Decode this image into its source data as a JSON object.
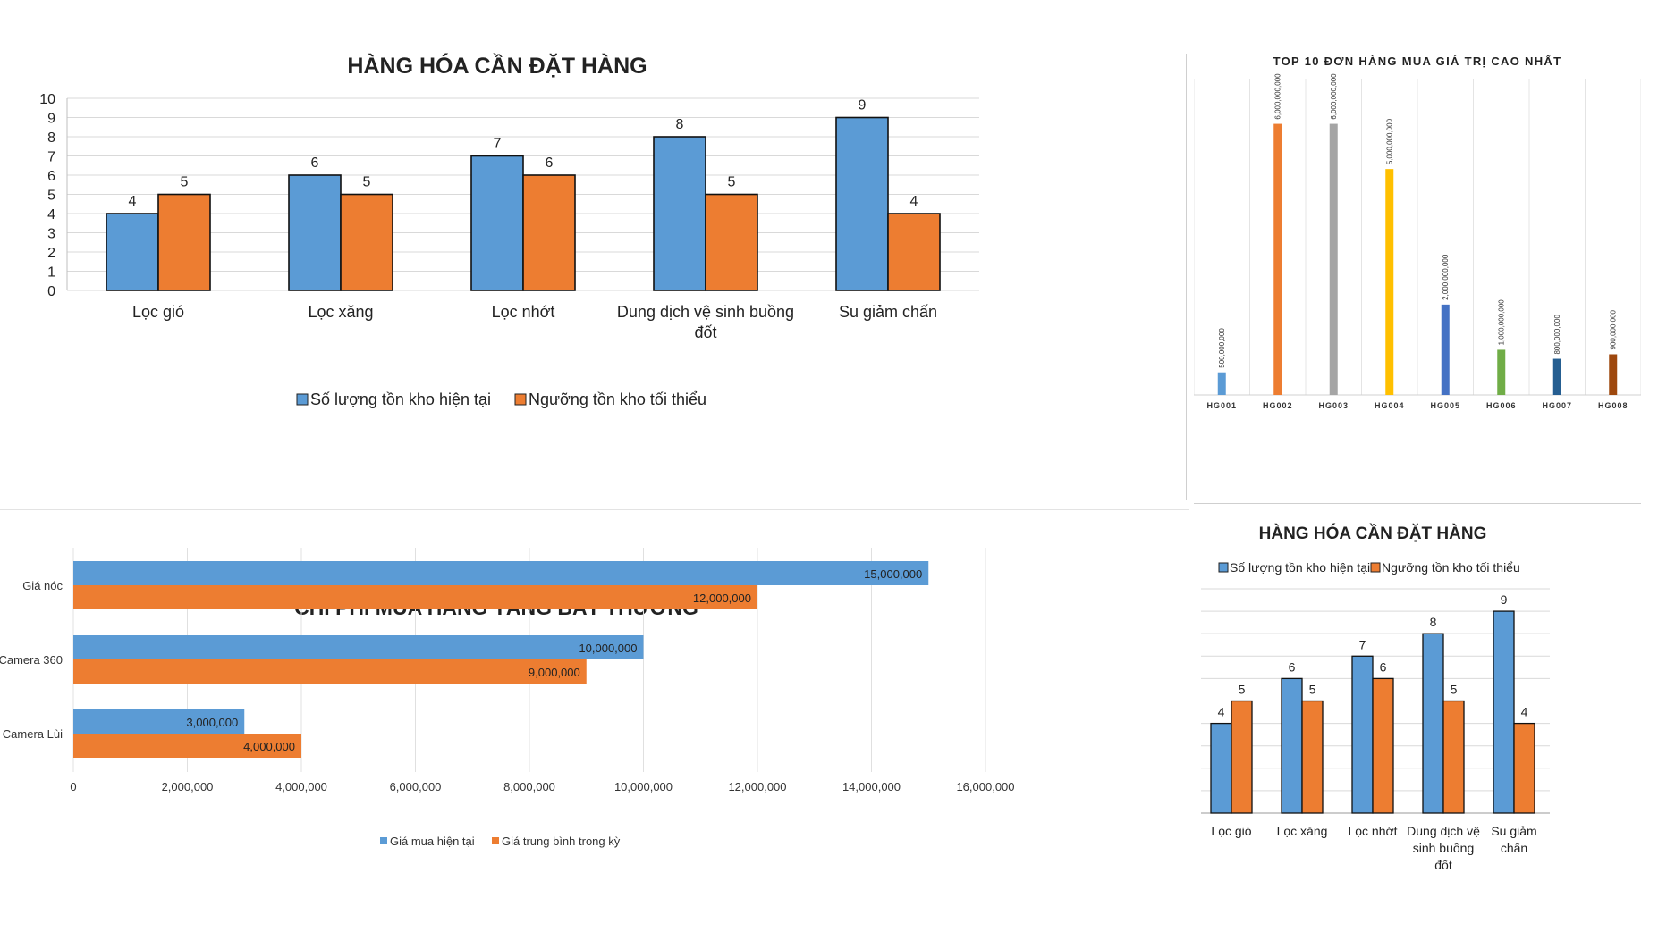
{
  "chart_data": [
    {
      "type": "bar",
      "title": "HÀNG HÓA CẦN ĐẶT HÀNG",
      "categories": [
        "Lọc gió",
        "Lọc xăng",
        "Lọc nhớt",
        "Dung dịch vệ sinh buồng đốt",
        "Su giảm chấn"
      ],
      "category_lines": [
        [
          "Lọc gió"
        ],
        [
          "Lọc xăng"
        ],
        [
          "Lọc nhớt"
        ],
        [
          "Dung dịch vệ sinh buồng",
          "đốt"
        ],
        [
          "Su giảm chấn"
        ]
      ],
      "series": [
        {
          "name": "Số lượng tồn kho hiện tại",
          "values": [
            4,
            6,
            7,
            8,
            9
          ],
          "color": "#5b9bd5"
        },
        {
          "name": "Ngưỡng tồn kho tối thiểu",
          "values": [
            5,
            5,
            6,
            5,
            4
          ],
          "color": "#ed7d31"
        }
      ],
      "ylim": [
        0,
        10
      ],
      "yticks": [
        "0",
        "1",
        "2",
        "3",
        "4",
        "5",
        "6",
        "7",
        "8",
        "9",
        "10"
      ],
      "grid": true,
      "legend": "bottom"
    },
    {
      "type": "bar",
      "title": "TOP 10 ĐƠN HÀNG MUA GIÁ TRỊ CAO NHẤT",
      "categories": [
        "HG001",
        "HG002",
        "HG003",
        "HG004",
        "HG005",
        "HG006",
        "HG007",
        "HG008"
      ],
      "values": [
        500000000,
        6000000000,
        6000000000,
        5000000000,
        2000000000,
        1000000000,
        800000000,
        900000000
      ],
      "value_labels": [
        "500,000,000",
        "6,000,000,000",
        "6,000,000,000",
        "5,000,000,000",
        "2,000,000,000",
        "1,000,000,000",
        "800,000,000",
        "900,000,000"
      ],
      "colors": [
        "#5b9bd5",
        "#ed7d31",
        "#a5a5a5",
        "#ffc000",
        "#4472c4",
        "#70ad47",
        "#255e91",
        "#9e480e"
      ],
      "grid": true,
      "legend": "none"
    },
    {
      "type": "bar",
      "orientation": "horizontal",
      "title": "CHI PHÍ MUA HÀNG TĂNG BẤT THƯỜNG",
      "categories": [
        "Giá nóc",
        "Camera 360",
        "Camera Lùi"
      ],
      "series": [
        {
          "name": "Giá mua hiện tại",
          "values": [
            15000000,
            10000000,
            3000000
          ],
          "labels": [
            "15,000,000",
            "10,000,000",
            "3,000,000"
          ],
          "color": "#5b9bd5"
        },
        {
          "name": "Giá trung bình trong kỳ",
          "values": [
            12000000,
            9000000,
            4000000
          ],
          "labels": [
            "12,000,000",
            "9,000,000",
            "4,000,000"
          ],
          "color": "#ed7d31"
        }
      ],
      "xlim": [
        0,
        16000000
      ],
      "xticks": [
        "0",
        "2,000,000",
        "4,000,000",
        "6,000,000",
        "8,000,000",
        "10,000,000",
        "12,000,000",
        "14,000,000",
        "16,000,000"
      ],
      "grid": true,
      "legend": "bottom"
    },
    {
      "type": "bar",
      "title": "HÀNG HÓA CẦN ĐẶT HÀNG",
      "categories": [
        "Lọc gió",
        "Lọc xăng",
        "Lọc nhớt",
        "Dung dịch vệ sinh buồng đốt",
        "Su giảm chấn"
      ],
      "category_lines": [
        [
          "Lọc gió"
        ],
        [
          "Lọc xăng"
        ],
        [
          "Lọc nhớt"
        ],
        [
          "Dung dịch vệ",
          "sinh buồng",
          "đốt"
        ],
        [
          "Su giảm",
          "chấn"
        ]
      ],
      "series": [
        {
          "name": "Số lượng tồn kho hiện tại",
          "values": [
            4,
            6,
            7,
            8,
            9
          ],
          "color": "#5b9bd5"
        },
        {
          "name": "Ngưỡng tồn kho tối thiểu",
          "values": [
            5,
            5,
            6,
            5,
            4
          ],
          "color": "#ed7d31"
        }
      ],
      "ylim": [
        0,
        9.8
      ],
      "grid": true,
      "legend": "top"
    }
  ]
}
